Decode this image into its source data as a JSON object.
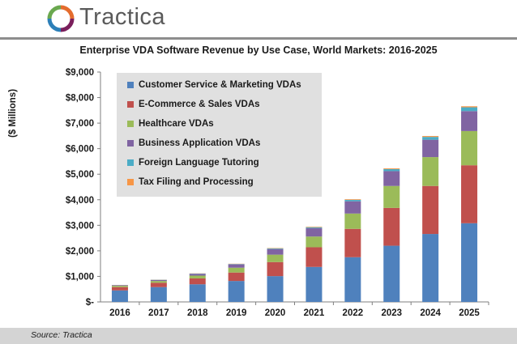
{
  "brand": {
    "name": "Tractica"
  },
  "chart_data": {
    "type": "bar",
    "stacked": true,
    "title": "Enterprise VDA Software Revenue by Use Case, World Markets: 2016-2025",
    "ylabel": "($ Millions)",
    "xlabel": "",
    "ylim": [
      0,
      9000
    ],
    "yticks": [
      0,
      1000,
      2000,
      3000,
      4000,
      5000,
      6000,
      7000,
      8000,
      9000
    ],
    "ytick_labels": [
      "$-",
      "$1,000",
      "$2,000",
      "$3,000",
      "$4,000",
      "$5,000",
      "$6,000",
      "$7,000",
      "$8,000",
      "$9,000"
    ],
    "categories": [
      "2016",
      "2017",
      "2018",
      "2019",
      "2020",
      "2021",
      "2022",
      "2023",
      "2024",
      "2025"
    ],
    "legend_position": "top-left",
    "grid": false,
    "series": [
      {
        "name": "Customer Service & Marketing VDAs",
        "color": "#4f81bd",
        "values": [
          450,
          580,
          690,
          820,
          1010,
          1370,
          1750,
          2200,
          2660,
          3080
        ]
      },
      {
        "name": "E-Commerce & Sales VDAs",
        "color": "#c0504d",
        "values": [
          130,
          170,
          230,
          330,
          550,
          770,
          1110,
          1480,
          1880,
          2270
        ]
      },
      {
        "name": "Healthcare VDAs",
        "color": "#9bbb59",
        "values": [
          50,
          70,
          110,
          190,
          290,
          420,
          600,
          860,
          1130,
          1340
        ]
      },
      {
        "name": "Business Application VDAs",
        "color": "#8064a2",
        "values": [
          25,
          40,
          70,
          130,
          220,
          330,
          480,
          580,
          680,
          780
        ]
      },
      {
        "name": "Foreign Language Tutoring",
        "color": "#4bacc6",
        "values": [
          5,
          8,
          10,
          15,
          25,
          35,
          55,
          80,
          110,
          150
        ]
      },
      {
        "name": "Tax Filing and Processing",
        "color": "#f79646",
        "values": [
          5,
          5,
          8,
          10,
          15,
          20,
          25,
          30,
          35,
          40
        ]
      }
    ]
  },
  "footer": {
    "source": "Source: Tractica"
  }
}
